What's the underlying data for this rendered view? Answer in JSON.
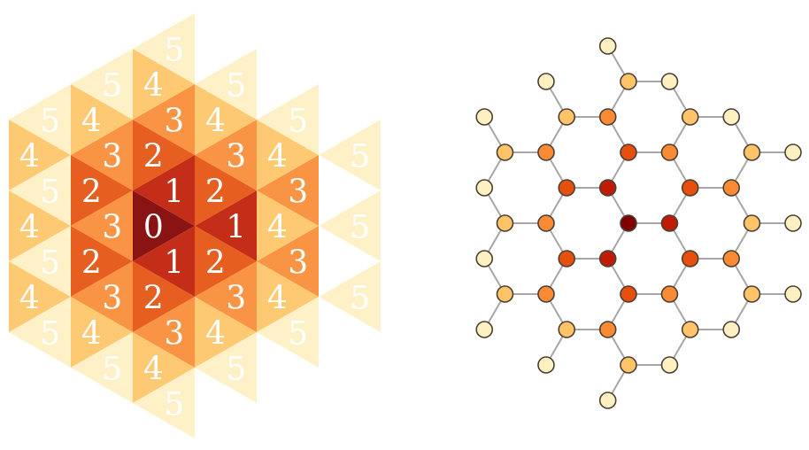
{
  "colors": {
    "levels": [
      "#800000",
      "#bf1c05",
      "#e5500e",
      "#f98b34",
      "#fec467",
      "#fff0c2"
    ]
  },
  "triangular_lattice": {
    "cells": [
      {
        "c": 0,
        "r": 0,
        "up": false,
        "level": "0"
      },
      {
        "c": 1,
        "r": 0,
        "up": true,
        "level": "1"
      },
      {
        "c": 0,
        "r": -1,
        "up": true,
        "level": "1"
      },
      {
        "c": 0,
        "r": 1,
        "up": true,
        "level": "1"
      },
      {
        "c": -1,
        "r": -1,
        "up": false,
        "level": "2"
      },
      {
        "c": -1,
        "r": 1,
        "up": false,
        "level": "2"
      },
      {
        "c": 1,
        "r": -1,
        "up": false,
        "level": "2"
      },
      {
        "c": 1,
        "r": 1,
        "up": false,
        "level": "2"
      },
      {
        "c": 0,
        "r": -2,
        "up": false,
        "level": "2"
      },
      {
        "c": 0,
        "r": 2,
        "up": false,
        "level": "2"
      },
      {
        "c": -1,
        "r": 0,
        "up": true,
        "level": "3"
      },
      {
        "c": 2,
        "r": -1,
        "up": true,
        "level": "3"
      },
      {
        "c": 2,
        "r": 1,
        "up": true,
        "level": "3"
      },
      {
        "c": -1,
        "r": -2,
        "up": true,
        "level": "3"
      },
      {
        "c": -1,
        "r": 2,
        "up": true,
        "level": "3"
      },
      {
        "c": 1,
        "r": -2,
        "up": true,
        "level": "3"
      },
      {
        "c": 1,
        "r": 2,
        "up": true,
        "level": "3"
      },
      {
        "c": 0,
        "r": -3,
        "up": true,
        "level": "3"
      },
      {
        "c": 0,
        "r": 3,
        "up": true,
        "level": "3"
      },
      {
        "c": -2,
        "r": 0,
        "up": false,
        "level": "4"
      },
      {
        "c": -2,
        "r": -2,
        "up": false,
        "level": "4"
      },
      {
        "c": -2,
        "r": 2,
        "up": false,
        "level": "4"
      },
      {
        "c": 2,
        "r": 0,
        "up": false,
        "level": "4"
      },
      {
        "c": 2,
        "r": -2,
        "up": false,
        "level": "4"
      },
      {
        "c": 2,
        "r": 2,
        "up": false,
        "level": "4"
      },
      {
        "c": -1,
        "r": -3,
        "up": false,
        "level": "4"
      },
      {
        "c": -1,
        "r": 3,
        "up": false,
        "level": "4"
      },
      {
        "c": 1,
        "r": -3,
        "up": false,
        "level": "4"
      },
      {
        "c": 1,
        "r": 3,
        "up": false,
        "level": "4"
      },
      {
        "c": 0,
        "r": -4,
        "up": false,
        "level": "4"
      },
      {
        "c": 0,
        "r": 4,
        "up": false,
        "level": "4"
      },
      {
        "c": -2,
        "r": -3,
        "up": true,
        "level": "5"
      },
      {
        "c": -2,
        "r": -1,
        "up": true,
        "level": "5"
      },
      {
        "c": -2,
        "r": 1,
        "up": true,
        "level": "5"
      },
      {
        "c": -2,
        "r": 3,
        "up": true,
        "level": "5"
      },
      {
        "c": -1,
        "r": -4,
        "up": true,
        "level": "5"
      },
      {
        "c": -1,
        "r": 4,
        "up": true,
        "level": "5"
      },
      {
        "c": 0,
        "r": -5,
        "up": true,
        "level": "5"
      },
      {
        "c": 0,
        "r": 5,
        "up": true,
        "level": "5"
      },
      {
        "c": 1,
        "r": -4,
        "up": true,
        "level": "5"
      },
      {
        "c": 1,
        "r": 4,
        "up": true,
        "level": "5"
      },
      {
        "c": 2,
        "r": -3,
        "up": true,
        "level": "5"
      },
      {
        "c": 2,
        "r": 3,
        "up": true,
        "level": "5"
      },
      {
        "c": 3,
        "r": -2,
        "up": true,
        "level": "5"
      },
      {
        "c": 3,
        "r": 0,
        "up": true,
        "level": "5"
      },
      {
        "c": 3,
        "r": 2,
        "up": true,
        "level": "5"
      }
    ]
  },
  "honeycomb_graph": {
    "nodes": [
      {
        "id": "n0",
        "x": 0,
        "y": 0,
        "level": 0
      },
      {
        "id": "n1",
        "x": 1,
        "y": 0,
        "level": 1
      },
      {
        "id": "n2",
        "x": -0.5,
        "y": -1,
        "level": 1
      },
      {
        "id": "n3",
        "x": -0.5,
        "y": 1,
        "level": 1
      },
      {
        "id": "n4",
        "x": -1.5,
        "y": -1,
        "level": 2
      },
      {
        "id": "n5",
        "x": -1.5,
        "y": 1,
        "level": 2
      },
      {
        "id": "n6",
        "x": 1.5,
        "y": -1,
        "level": 2
      },
      {
        "id": "n7",
        "x": 1.5,
        "y": 1,
        "level": 2
      },
      {
        "id": "n8",
        "x": 0,
        "y": -2,
        "level": 2
      },
      {
        "id": "n9",
        "x": 0,
        "y": 2,
        "level": 2
      },
      {
        "id": "n10",
        "x": 1,
        "y": -2,
        "level": 3
      },
      {
        "id": "n11",
        "x": 1,
        "y": 2,
        "level": 3
      },
      {
        "id": "n12",
        "x": 2.5,
        "y": -1,
        "level": 3
      },
      {
        "id": "n13",
        "x": 2.5,
        "y": 1,
        "level": 3
      },
      {
        "id": "n14",
        "x": -2,
        "y": 0,
        "level": 3
      },
      {
        "id": "n15",
        "x": -0.5,
        "y": -3,
        "level": 3
      },
      {
        "id": "n16",
        "x": -0.5,
        "y": 3,
        "level": 3
      },
      {
        "id": "n17",
        "x": -2,
        "y": -2,
        "level": 3
      },
      {
        "id": "n18",
        "x": -2,
        "y": 2,
        "level": 3
      },
      {
        "id": "n19",
        "x": 3,
        "y": 0,
        "level": 4
      },
      {
        "id": "n20",
        "x": -3,
        "y": 0,
        "level": 4
      },
      {
        "id": "n21",
        "x": -3,
        "y": -2,
        "level": 4
      },
      {
        "id": "n22",
        "x": -3,
        "y": 2,
        "level": 4
      },
      {
        "id": "n23",
        "x": 3,
        "y": -2,
        "level": 4
      },
      {
        "id": "n24",
        "x": 3,
        "y": 2,
        "level": 4
      },
      {
        "id": "n25",
        "x": -1.5,
        "y": -3,
        "level": 4
      },
      {
        "id": "n26",
        "x": -1.5,
        "y": 3,
        "level": 4
      },
      {
        "id": "n27",
        "x": 1.5,
        "y": -3,
        "level": 4
      },
      {
        "id": "n28",
        "x": 1.5,
        "y": 3,
        "level": 4
      },
      {
        "id": "n29",
        "x": 0,
        "y": -4,
        "level": 4
      },
      {
        "id": "n30",
        "x": 0,
        "y": 4,
        "level": 4
      },
      {
        "id": "n31",
        "x": 4,
        "y": 0,
        "level": 5
      },
      {
        "id": "n32",
        "x": 4,
        "y": -2,
        "level": 5
      },
      {
        "id": "n33",
        "x": 4,
        "y": 2,
        "level": 5
      },
      {
        "id": "n34",
        "x": -3.5,
        "y": -1,
        "level": 5
      },
      {
        "id": "n35",
        "x": -3.5,
        "y": 1,
        "level": 5
      },
      {
        "id": "n36",
        "x": -3.5,
        "y": -3,
        "level": 5
      },
      {
        "id": "n37",
        "x": -3.5,
        "y": 3,
        "level": 5
      },
      {
        "id": "n38",
        "x": 2.5,
        "y": -3,
        "level": 5
      },
      {
        "id": "n39",
        "x": 2.5,
        "y": 3,
        "level": 5
      },
      {
        "id": "n40",
        "x": 1,
        "y": -4,
        "level": 5
      },
      {
        "id": "n41",
        "x": 1,
        "y": 4,
        "level": 5
      },
      {
        "id": "n42",
        "x": -0.5,
        "y": -5,
        "level": 5
      },
      {
        "id": "n43",
        "x": -0.5,
        "y": 5,
        "level": 5
      },
      {
        "id": "n44",
        "x": -2,
        "y": -4,
        "level": 5
      },
      {
        "id": "n45",
        "x": -2,
        "y": 4,
        "level": 5
      }
    ],
    "edges": [
      [
        "n0",
        "n1"
      ],
      [
        "n0",
        "n2"
      ],
      [
        "n0",
        "n3"
      ],
      [
        "n2",
        "n4"
      ],
      [
        "n2",
        "n8"
      ],
      [
        "n3",
        "n5"
      ],
      [
        "n3",
        "n9"
      ],
      [
        "n1",
        "n6"
      ],
      [
        "n1",
        "n7"
      ],
      [
        "n6",
        "n10"
      ],
      [
        "n6",
        "n12"
      ],
      [
        "n7",
        "n11"
      ],
      [
        "n7",
        "n13"
      ],
      [
        "n4",
        "n14"
      ],
      [
        "n4",
        "n17"
      ],
      [
        "n5",
        "n14"
      ],
      [
        "n5",
        "n18"
      ],
      [
        "n8",
        "n10"
      ],
      [
        "n8",
        "n15"
      ],
      [
        "n9",
        "n11"
      ],
      [
        "n9",
        "n16"
      ],
      [
        "n12",
        "n19"
      ],
      [
        "n12",
        "n23"
      ],
      [
        "n13",
        "n19"
      ],
      [
        "n13",
        "n24"
      ],
      [
        "n14",
        "n20"
      ],
      [
        "n17",
        "n21"
      ],
      [
        "n17",
        "n25"
      ],
      [
        "n18",
        "n22"
      ],
      [
        "n18",
        "n26"
      ],
      [
        "n10",
        "n27"
      ],
      [
        "n11",
        "n28"
      ],
      [
        "n15",
        "n25"
      ],
      [
        "n15",
        "n29"
      ],
      [
        "n16",
        "n26"
      ],
      [
        "n16",
        "n30"
      ],
      [
        "n19",
        "n31"
      ],
      [
        "n23",
        "n32"
      ],
      [
        "n24",
        "n33"
      ],
      [
        "n20",
        "n34"
      ],
      [
        "n20",
        "n35"
      ],
      [
        "n21",
        "n34"
      ],
      [
        "n21",
        "n36"
      ],
      [
        "n22",
        "n35"
      ],
      [
        "n22",
        "n37"
      ],
      [
        "n23",
        "n38"
      ],
      [
        "n24",
        "n39"
      ],
      [
        "n27",
        "n38"
      ],
      [
        "n27",
        "n40"
      ],
      [
        "n28",
        "n39"
      ],
      [
        "n28",
        "n41"
      ],
      [
        "n29",
        "n40"
      ],
      [
        "n29",
        "n42"
      ],
      [
        "n30",
        "n41"
      ],
      [
        "n30",
        "n43"
      ],
      [
        "n25",
        "n44"
      ],
      [
        "n26",
        "n45"
      ]
    ]
  }
}
